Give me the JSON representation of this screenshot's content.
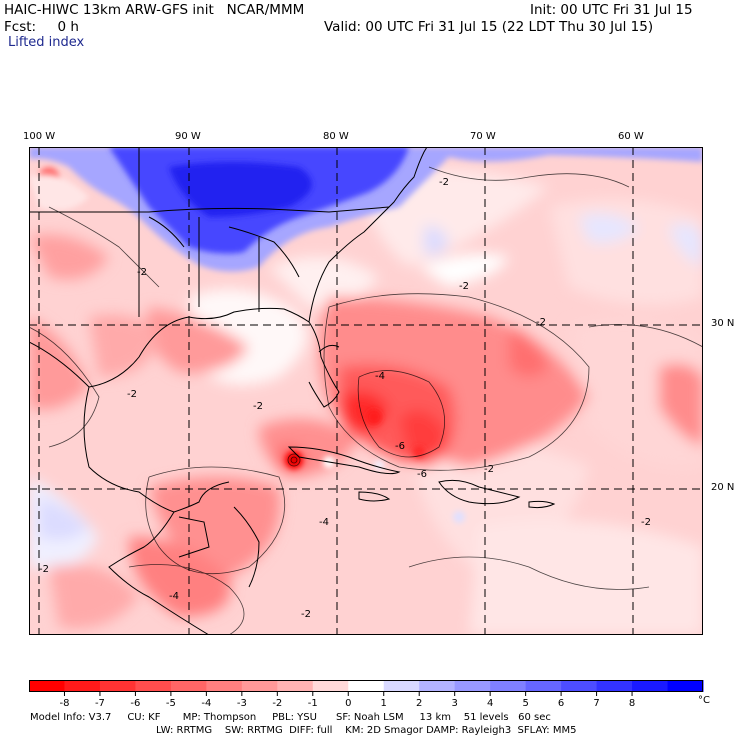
{
  "header": {
    "model_title": "HAIC-HIWC 13km ARW-GFS init   NCAR/MMM",
    "init": "Init: 00 UTC Fri 31 Jul 15",
    "fcst": "Fcst:     0 h",
    "valid": "Valid: 00 UTC Fri 31 Jul 15 (22 LDT Thu 30 Jul 15)",
    "field_name": "Lifted index"
  },
  "map": {
    "lon_labels": [
      "100 W",
      "90 W",
      "80 W",
      "70 W",
      "60 W"
    ],
    "lat_labels": [
      "30 N",
      "20 N"
    ],
    "contour_labels": [
      "-2",
      "-4",
      "-6"
    ],
    "colors": {
      "neg_strong": "#ff0000",
      "neg_light": "#ffc8c8",
      "neutral": "#ffffff",
      "pos_light": "#d2d2ff",
      "pos_strong": "#0000ff",
      "land_outline": "#000000"
    }
  },
  "colorbar": {
    "tick_labels": [
      "-8",
      "-7",
      "-6",
      "-5",
      "-4",
      "-3",
      "-2",
      "-1",
      "0",
      "1",
      "2",
      "3",
      "4",
      "5",
      "6",
      "7",
      "8"
    ],
    "unit": "°C",
    "colors": [
      "#ff0000",
      "#ff1a1a",
      "#ff3333",
      "#ff4d4d",
      "#ff6666",
      "#ff8080",
      "#ff9999",
      "#ffb3b3",
      "#ffd9d9",
      "#ffffff",
      "#d9d9ff",
      "#b3b3ff",
      "#9999ff",
      "#8080ff",
      "#6666ff",
      "#4d4dff",
      "#3333ff",
      "#1a1aff",
      "#0000ff"
    ]
  },
  "footer": {
    "line1": "Model Info: V3.7     CU: KF       MP: Thompson     PBL: YSU      SF: Noah LSM     13 km    51 levels   60 sec",
    "line2": "LW: RRTMG    SW: RRTMG  DIFF: full    KM: 2D Smagor DAMP: Rayleigh3  SFLAY: MM5"
  }
}
